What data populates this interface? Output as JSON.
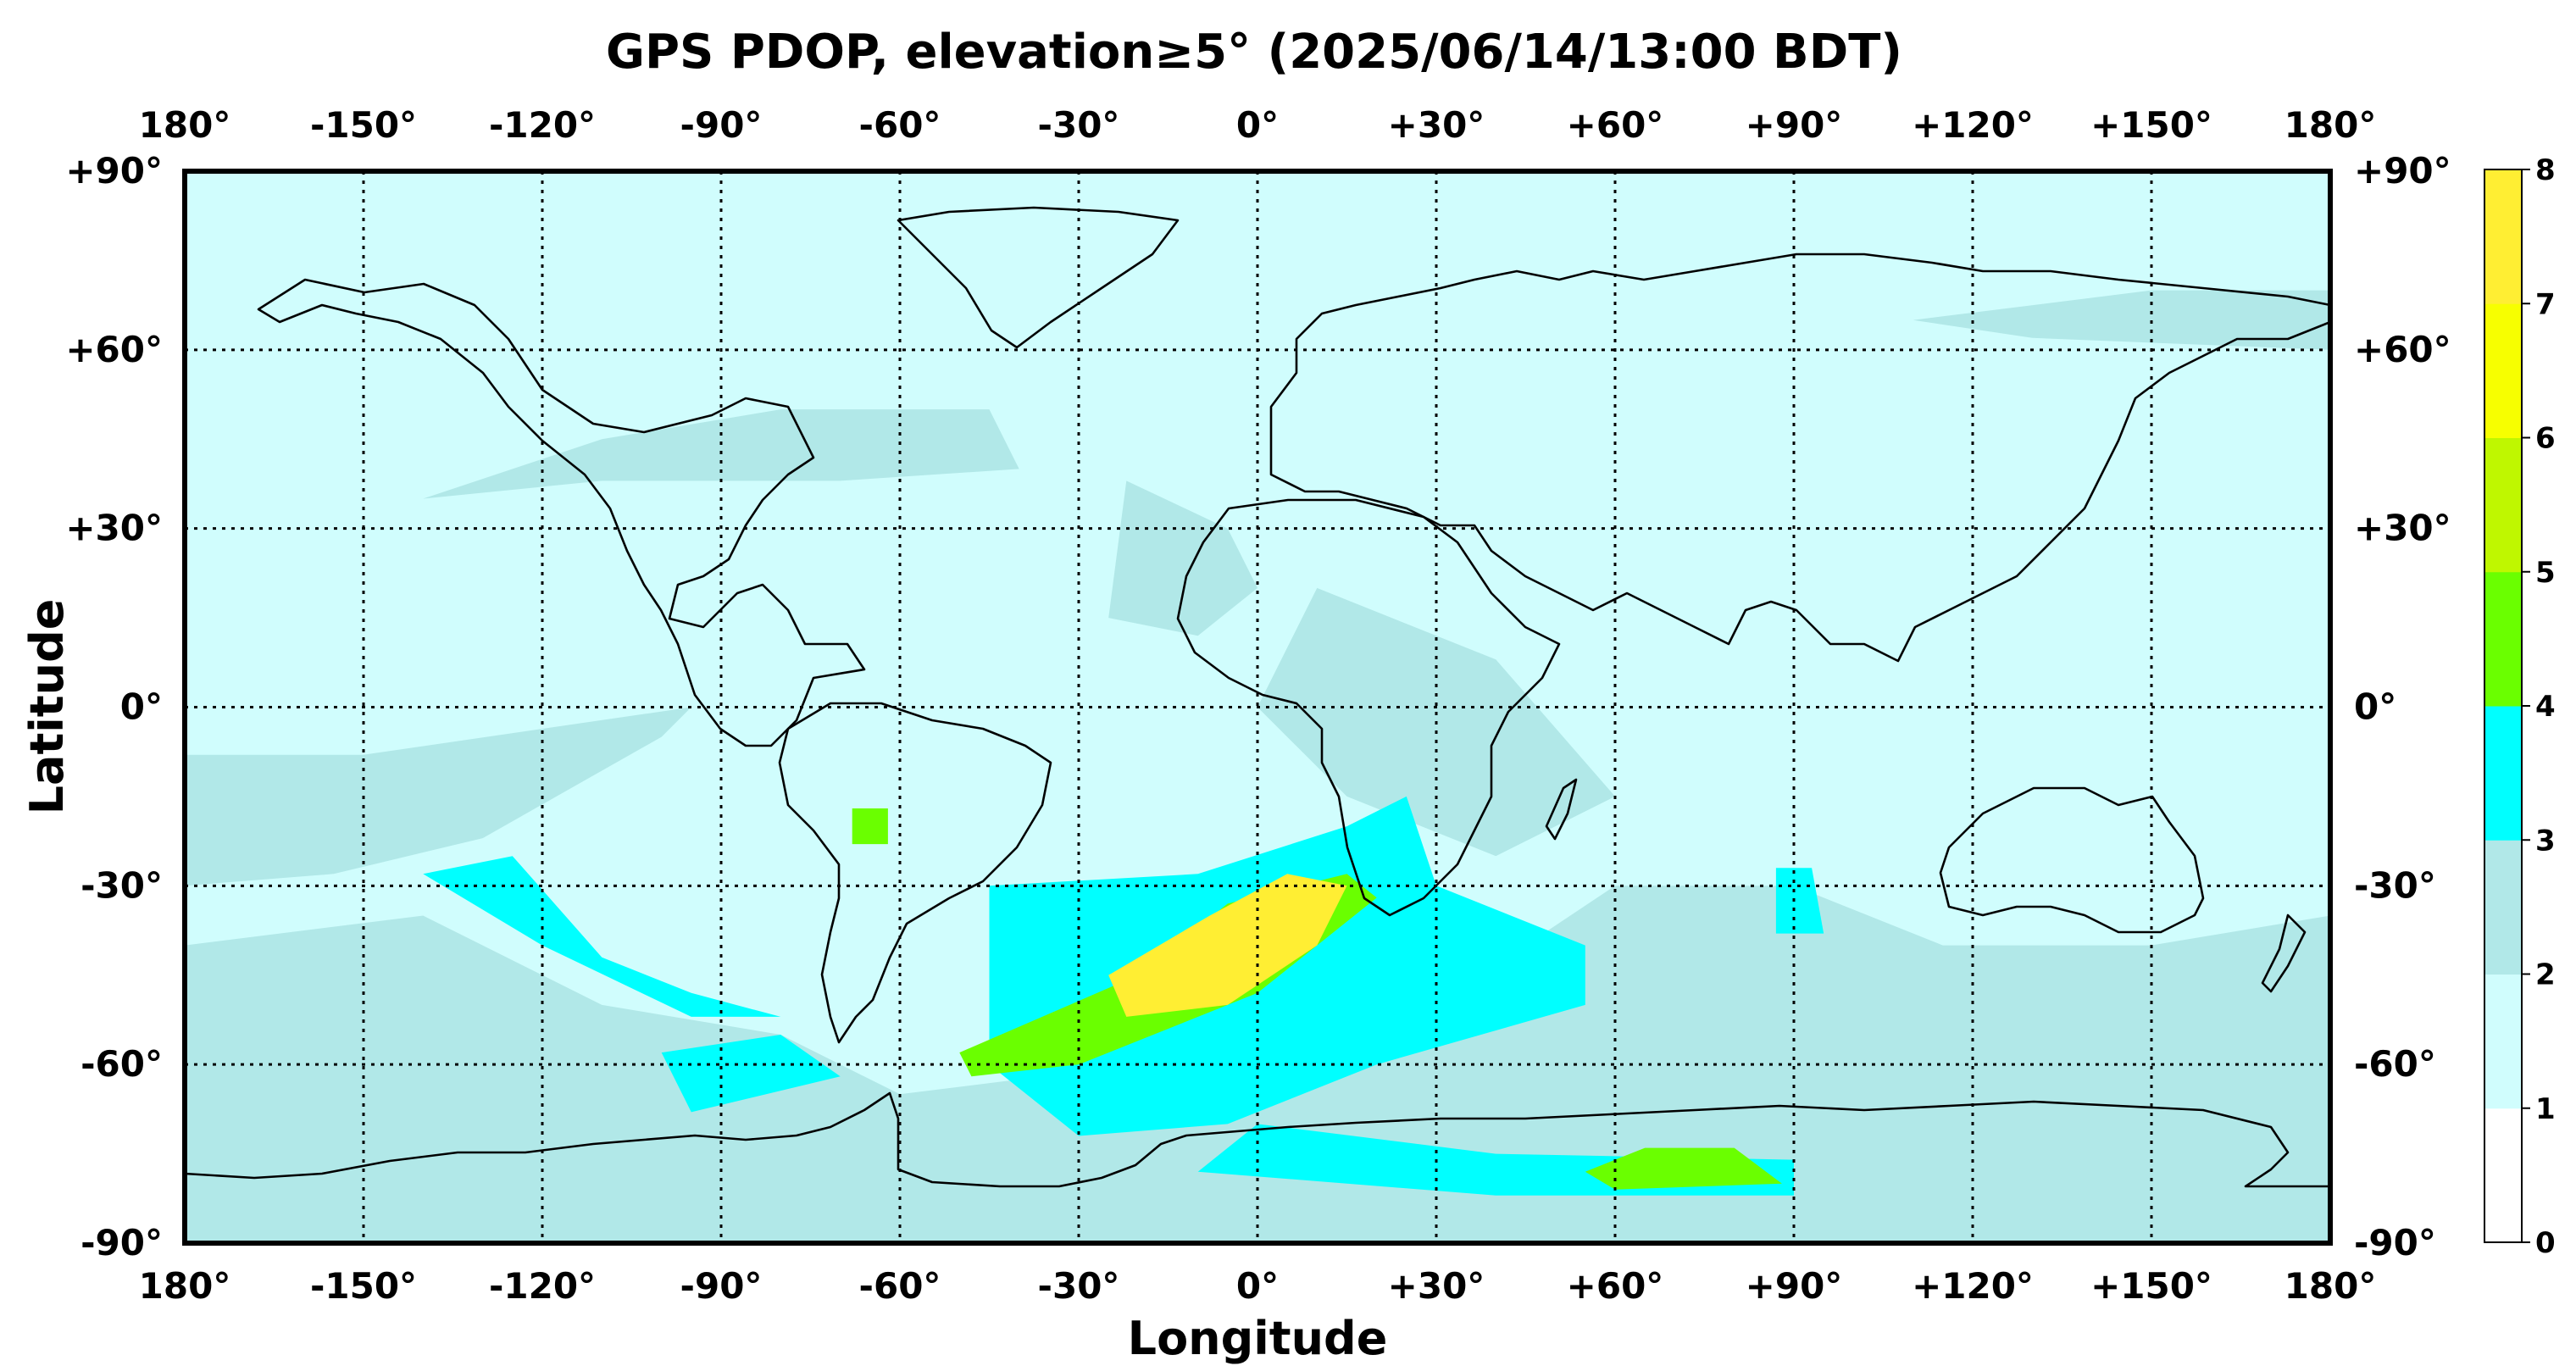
{
  "title": "GPS PDOP, elevation≥5° (2025/06/14/13:00 BDT)",
  "xlabel": "Longitude",
  "ylabel": "Latitude",
  "lon_ticks": [
    "180°",
    "-150°",
    "-120°",
    "-90°",
    "-60°",
    "-30°",
    "0°",
    "+30°",
    "+60°",
    "+90°",
    "+120°",
    "+150°",
    "180°"
  ],
  "lat_ticks": [
    "+90°",
    "+60°",
    "+30°",
    "0°",
    "-30°",
    "-60°",
    "-90°"
  ],
  "colorbar": {
    "ticks": [
      "0",
      "1",
      "2",
      "3",
      "4",
      "5",
      "6",
      "7",
      "8"
    ],
    "colors": [
      "#ffffff",
      "#d0fdfd",
      "#b1e8e8",
      "#00ffff",
      "#6aff00",
      "#bff700",
      "#f7ff00",
      "#ffee33"
    ]
  },
  "map_data": {
    "lon_range": [
      -180,
      180
    ],
    "lat_range": [
      -90,
      90
    ],
    "regions": [
      {
        "level": 2,
        "polygon": [
          [
            -180,
            -30
          ],
          [
            -155,
            -28
          ],
          [
            -130,
            -22
          ],
          [
            -100,
            -5
          ],
          [
            -95,
            0
          ],
          [
            -150,
            -8
          ],
          [
            -180,
            -8
          ]
        ]
      },
      {
        "level": 2,
        "polygon": [
          [
            -140,
            35
          ],
          [
            -110,
            45
          ],
          [
            -80,
            50
          ],
          [
            -45,
            50
          ],
          [
            -40,
            40
          ],
          [
            -70,
            38
          ],
          [
            -110,
            38
          ]
        ]
      },
      {
        "level": 2,
        "polygon": [
          [
            -22,
            38
          ],
          [
            -5,
            30
          ],
          [
            0,
            20
          ],
          [
            -10,
            12
          ],
          [
            -25,
            15
          ]
        ]
      },
      {
        "level": 2,
        "polygon": [
          [
            -180,
            -40
          ],
          [
            -140,
            -35
          ],
          [
            -110,
            -50
          ],
          [
            -80,
            -55
          ],
          [
            -60,
            -65
          ],
          [
            -20,
            -60
          ],
          [
            30,
            -50
          ],
          [
            60,
            -30
          ],
          [
            90,
            -30
          ],
          [
            115,
            -40
          ],
          [
            150,
            -40
          ],
          [
            180,
            -35
          ],
          [
            180,
            -90
          ],
          [
            -180,
            -90
          ]
        ]
      },
      {
        "level": 2,
        "polygon": [
          [
            10,
            20
          ],
          [
            40,
            8
          ],
          [
            60,
            -15
          ],
          [
            40,
            -25
          ],
          [
            15,
            -15
          ],
          [
            0,
            0
          ]
        ]
      },
      {
        "level": 2,
        "polygon": [
          [
            110,
            65
          ],
          [
            150,
            70
          ],
          [
            180,
            70
          ],
          [
            180,
            60
          ],
          [
            130,
            62
          ]
        ]
      },
      {
        "level": 3,
        "polygon": [
          [
            -140,
            -28
          ],
          [
            -125,
            -25
          ],
          [
            -110,
            -42
          ],
          [
            -95,
            -48
          ],
          [
            -80,
            -52
          ],
          [
            -95,
            -52
          ],
          [
            -120,
            -40
          ]
        ]
      },
      {
        "level": 3,
        "polygon": [
          [
            -100,
            -58
          ],
          [
            -80,
            -55
          ],
          [
            -70,
            -62
          ],
          [
            -95,
            -68
          ]
        ]
      },
      {
        "level": 3,
        "polygon": [
          [
            -45,
            -30
          ],
          [
            -10,
            -28
          ],
          [
            15,
            -20
          ],
          [
            25,
            -15
          ],
          [
            30,
            -30
          ],
          [
            55,
            -40
          ],
          [
            55,
            -50
          ],
          [
            20,
            -60
          ],
          [
            -5,
            -70
          ],
          [
            -30,
            -72
          ],
          [
            -45,
            -60
          ],
          [
            -45,
            -45
          ]
        ]
      },
      {
        "level": 3,
        "polygon": [
          [
            0,
            -70
          ],
          [
            40,
            -75
          ],
          [
            90,
            -76
          ],
          [
            90,
            -82
          ],
          [
            40,
            -82
          ],
          [
            -10,
            -78
          ]
        ]
      },
      {
        "level": 3,
        "polygon": [
          [
            87,
            -27
          ],
          [
            93,
            -27
          ],
          [
            95,
            -38
          ],
          [
            87,
            -38
          ]
        ]
      },
      {
        "level": 4,
        "polygon": [
          [
            -50,
            -58
          ],
          [
            -20,
            -45
          ],
          [
            -5,
            -33
          ],
          [
            15,
            -28
          ],
          [
            20,
            -32
          ],
          [
            0,
            -48
          ],
          [
            -30,
            -60
          ],
          [
            -48,
            -62
          ]
        ]
      },
      {
        "level": 4,
        "polygon": [
          [
            55,
            -78
          ],
          [
            65,
            -74
          ],
          [
            80,
            -74
          ],
          [
            88,
            -80
          ],
          [
            60,
            -81
          ]
        ]
      },
      {
        "level": 4,
        "polygon": [
          [
            -68,
            -17
          ],
          [
            -62,
            -17
          ],
          [
            -62,
            -23
          ],
          [
            -68,
            -23
          ]
        ]
      },
      {
        "level": 8,
        "polygon": [
          [
            -25,
            -45
          ],
          [
            -8,
            -35
          ],
          [
            5,
            -28
          ],
          [
            15,
            -30
          ],
          [
            10,
            -40
          ],
          [
            -5,
            -50
          ],
          [
            -22,
            -52
          ]
        ]
      }
    ]
  }
}
